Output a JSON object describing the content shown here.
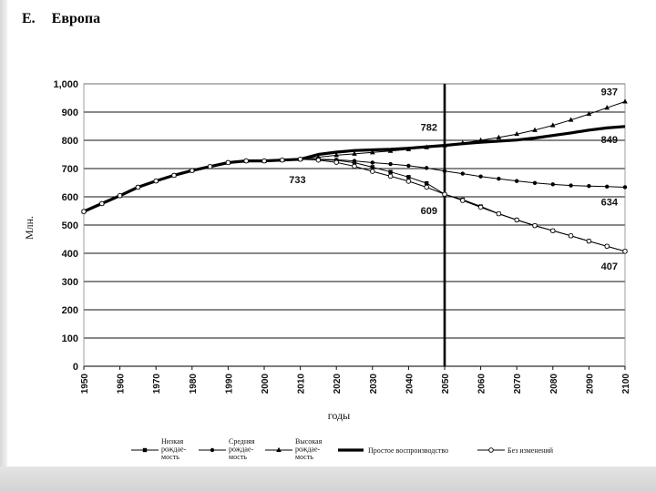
{
  "page": {
    "letter": "E.",
    "title": "Европа"
  },
  "chart_data": {
    "type": "line",
    "title": "Европа",
    "xlabel": "годы",
    "ylabel": "Млн.",
    "xlim": [
      1950,
      2100
    ],
    "ylim": [
      0,
      1000
    ],
    "x_ticks": [
      1950,
      1960,
      1970,
      1980,
      1990,
      2000,
      2010,
      2020,
      2030,
      2040,
      2050,
      2060,
      2070,
      2080,
      2090,
      2100
    ],
    "y_ticks": [
      0,
      100,
      200,
      300,
      400,
      500,
      600,
      700,
      800,
      900,
      1000
    ],
    "y_tick_labels": [
      "0",
      "100",
      "200",
      "300",
      "400",
      "500",
      "600",
      "700",
      "800",
      "900",
      "1,000"
    ],
    "grid": "horizontal",
    "reference_line": {
      "x": 2050
    },
    "x": [
      1950,
      1955,
      1960,
      1965,
      1970,
      1975,
      1980,
      1985,
      1990,
      1995,
      2000,
      2005,
      2010,
      2015,
      2020,
      2025,
      2030,
      2035,
      2040,
      2045,
      2050,
      2055,
      2060,
      2065,
      2070,
      2075,
      2080,
      2085,
      2090,
      2095,
      2100
    ],
    "series": [
      {
        "name": "Низкая рождаемость",
        "marker": "square",
        "line": "thin",
        "values": [
          548,
          576,
          604,
          634,
          656,
          676,
          693,
          707,
          721,
          727,
          727,
          730,
          733,
          732,
          729,
          721,
          705,
          688,
          670,
          648,
          609,
          590,
          566,
          540,
          518,
          498,
          480,
          462,
          443,
          425,
          407
        ]
      },
      {
        "name": "Средняя рождаемость",
        "marker": "circle",
        "line": "thin",
        "values": [
          548,
          576,
          604,
          634,
          656,
          676,
          693,
          707,
          721,
          727,
          727,
          730,
          733,
          733,
          731,
          727,
          721,
          716,
          710,
          702,
          691,
          682,
          672,
          664,
          656,
          649,
          644,
          640,
          638,
          636,
          634
        ]
      },
      {
        "name": "Высокая рождаемость",
        "marker": "triangle",
        "line": "thin",
        "values": [
          548,
          576,
          604,
          634,
          656,
          676,
          693,
          707,
          721,
          727,
          727,
          730,
          733,
          740,
          747,
          752,
          757,
          762,
          768,
          775,
          782,
          790,
          800,
          810,
          822,
          836,
          853,
          872,
          893,
          915,
          937
        ]
      },
      {
        "name": "Простое воспроизводство",
        "marker": "none",
        "line": "thick",
        "values": [
          548,
          576,
          604,
          634,
          656,
          676,
          693,
          707,
          721,
          727,
          727,
          730,
          733,
          750,
          758,
          764,
          766,
          768,
          772,
          777,
          782,
          788,
          793,
          797,
          801,
          808,
          817,
          826,
          836,
          844,
          849
        ]
      },
      {
        "name": "Без изменений",
        "marker": "open-circle",
        "line": "thin",
        "values": [
          548,
          576,
          604,
          634,
          656,
          676,
          693,
          707,
          721,
          727,
          727,
          730,
          733,
          730,
          722,
          708,
          690,
          673,
          655,
          634,
          609,
          587,
          563,
          540,
          518,
          498,
          480,
          462,
          443,
          425,
          407
        ]
      }
    ],
    "annotations": [
      {
        "text": "937",
        "x": 2100,
        "y": 937
      },
      {
        "text": "782",
        "x": 2050,
        "y": 782
      },
      {
        "text": "849",
        "x": 2100,
        "y": 849
      },
      {
        "text": "733",
        "x": 2010,
        "y": 733
      },
      {
        "text": "609",
        "x": 2050,
        "y": 609
      },
      {
        "text": "634",
        "x": 2100,
        "y": 634
      },
      {
        "text": "407",
        "x": 2100,
        "y": 407
      }
    ],
    "legend": {
      "placement": "bottom",
      "items": [
        {
          "lines": [
            "Низкая",
            "рождае-",
            "мость"
          ]
        },
        {
          "lines": [
            "Средняя",
            "рождае-",
            "мость"
          ]
        },
        {
          "lines": [
            "Высокая",
            "рождае-",
            "мость"
          ]
        },
        {
          "lines": [
            "Простое воспроизводство"
          ]
        },
        {
          "lines": [
            "Без изменений"
          ]
        }
      ]
    }
  }
}
